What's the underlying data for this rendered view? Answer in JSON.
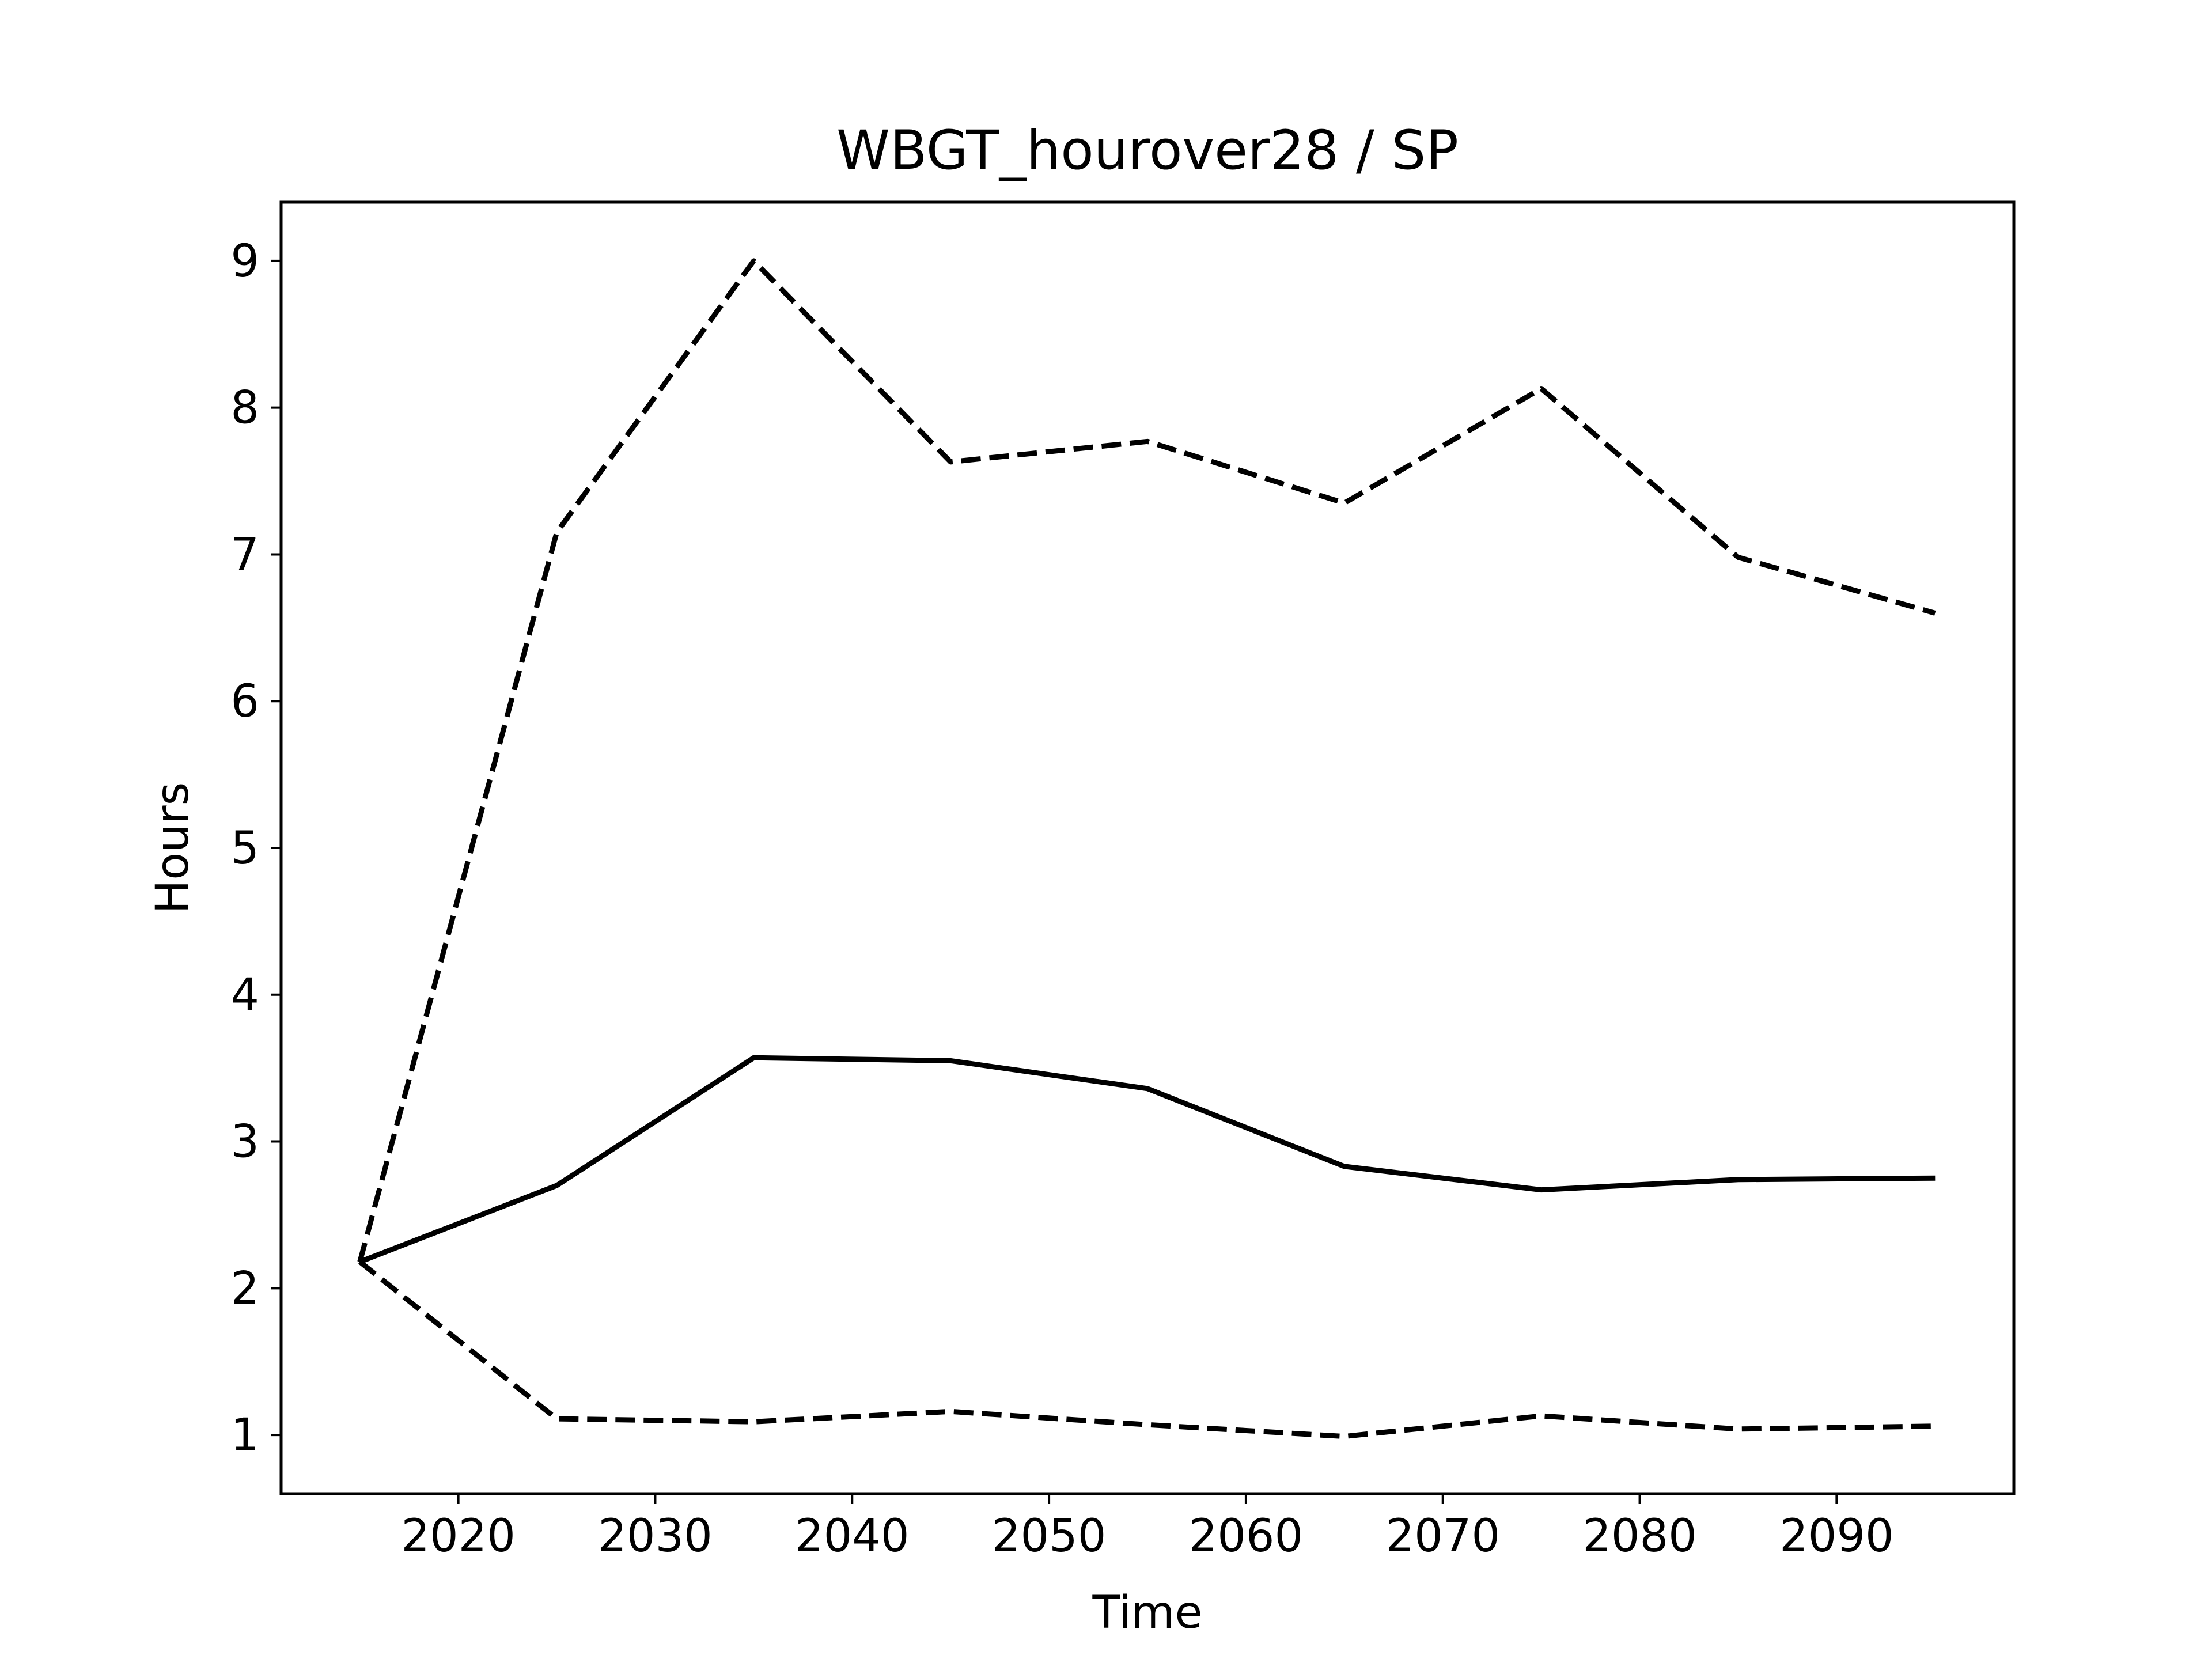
{
  "chart_data": {
    "type": "line",
    "title": "WBGT_hourover28 / SP",
    "xlabel": "Time",
    "ylabel": "Hours",
    "xlim": [
      2011,
      2099
    ],
    "ylim": [
      0.6,
      9.4
    ],
    "xticks": [
      2020,
      2030,
      2040,
      2050,
      2060,
      2070,
      2080,
      2090
    ],
    "yticks": [
      1,
      2,
      3,
      4,
      5,
      6,
      7,
      8,
      9
    ],
    "grid": false,
    "legend": "none",
    "x": [
      2015,
      2025,
      2035,
      2045,
      2055,
      2065,
      2075,
      2085,
      2095
    ],
    "series": [
      {
        "style": "dashed",
        "color": "#000000",
        "values": [
          2.18,
          7.15,
          9.0,
          7.63,
          7.77,
          7.35,
          8.13,
          6.98,
          6.6
        ]
      },
      {
        "style": "solid",
        "color": "#000000",
        "values": [
          2.18,
          2.7,
          3.57,
          3.55,
          3.36,
          2.83,
          2.67,
          2.74,
          2.75
        ]
      },
      {
        "style": "dashed",
        "color": "#000000",
        "values": [
          2.18,
          1.11,
          1.09,
          1.16,
          1.07,
          0.99,
          1.13,
          1.04,
          1.06
        ]
      }
    ]
  }
}
